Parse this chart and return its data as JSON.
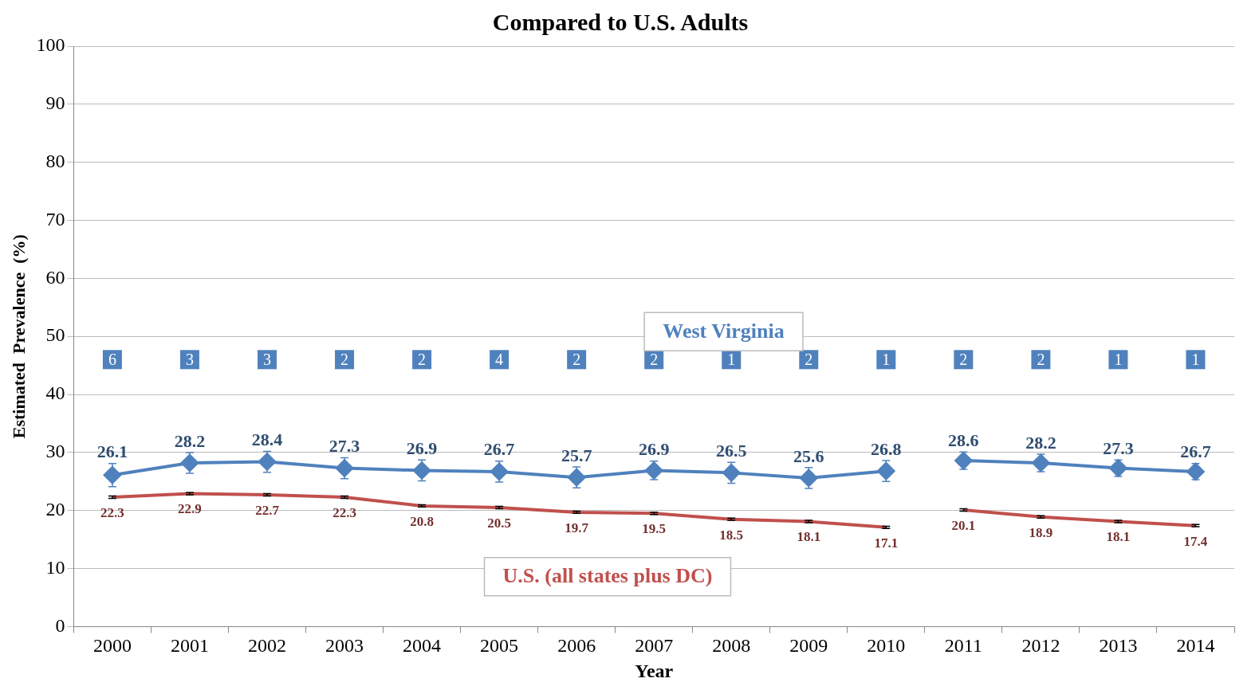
{
  "chart_data": {
    "type": "line",
    "title": "Compared to U.S. Adults",
    "xlabel": "Year",
    "ylabel": "Estimated  Prevalence  (%)",
    "categories": [
      "2000",
      "2001",
      "2002",
      "2003",
      "2004",
      "2005",
      "2006",
      "2007",
      "2008",
      "2009",
      "2010",
      "2011",
      "2012",
      "2013",
      "2014"
    ],
    "series": [
      {
        "name": "West Virginia",
        "color": "#4f81bd",
        "marker": "diamond",
        "values": [
          26.1,
          28.2,
          28.4,
          27.3,
          26.9,
          26.7,
          25.7,
          26.9,
          26.5,
          25.6,
          26.8,
          null,
          null,
          null,
          null
        ],
        "errors": [
          2.0,
          1.8,
          1.8,
          1.8,
          1.8,
          1.8,
          1.8,
          1.6,
          1.8,
          1.8,
          1.8,
          null,
          null,
          null,
          null
        ]
      },
      {
        "color": "#4f81bd",
        "marker": "diamond",
        "values": [
          null,
          null,
          null,
          null,
          null,
          null,
          null,
          null,
          null,
          null,
          null,
          28.6,
          28.2,
          27.3,
          26.7
        ],
        "errors": [
          null,
          null,
          null,
          null,
          null,
          null,
          null,
          null,
          null,
          null,
          null,
          1.5,
          1.5,
          1.4,
          1.4
        ]
      },
      {
        "name": "U.S. (all states plus DC)",
        "color": "#c0504d",
        "marker": "none",
        "values": [
          22.3,
          22.9,
          22.7,
          22.3,
          20.8,
          20.5,
          19.7,
          19.5,
          18.5,
          18.1,
          17.1,
          null,
          null,
          null,
          null
        ],
        "errors": [
          0.2,
          0.2,
          0.2,
          0.2,
          0.2,
          0.2,
          0.2,
          0.2,
          0.2,
          0.2,
          0.2,
          null,
          null,
          null,
          null
        ]
      },
      {
        "color": "#c0504d",
        "marker": "none",
        "values": [
          null,
          null,
          null,
          null,
          null,
          null,
          null,
          null,
          null,
          null,
          null,
          20.1,
          18.9,
          18.1,
          17.4
        ],
        "errors": [
          null,
          null,
          null,
          null,
          null,
          null,
          null,
          null,
          null,
          null,
          null,
          0.2,
          0.2,
          0.2,
          0.2
        ]
      }
    ],
    "data_labels": true,
    "annotations": [
      {
        "text": "6",
        "x": "2000",
        "y": 46
      },
      {
        "text": "3",
        "x": "2001",
        "y": 46
      },
      {
        "text": "3",
        "x": "2002",
        "y": 46
      },
      {
        "text": "2",
        "x": "2003",
        "y": 46
      },
      {
        "text": "2",
        "x": "2004",
        "y": 46
      },
      {
        "text": "4",
        "x": "2005",
        "y": 46
      },
      {
        "text": "2",
        "x": "2006",
        "y": 46
      },
      {
        "text": "2",
        "x": "2007",
        "y": 46
      },
      {
        "text": "1",
        "x": "2008",
        "y": 46
      },
      {
        "text": "2",
        "x": "2009",
        "y": 46
      },
      {
        "text": "1",
        "x": "2010",
        "y": 46
      },
      {
        "text": "2",
        "x": "2011",
        "y": 46
      },
      {
        "text": "2",
        "x": "2012",
        "y": 46
      },
      {
        "text": "1",
        "x": "2013",
        "y": 46
      },
      {
        "text": "1",
        "x": "2014",
        "y": 46
      }
    ],
    "ylim": [
      0,
      100
    ],
    "yticks": [
      0,
      10,
      20,
      30,
      40,
      50,
      60,
      70,
      80,
      90,
      100
    ],
    "grid": "y",
    "legend": false
  }
}
